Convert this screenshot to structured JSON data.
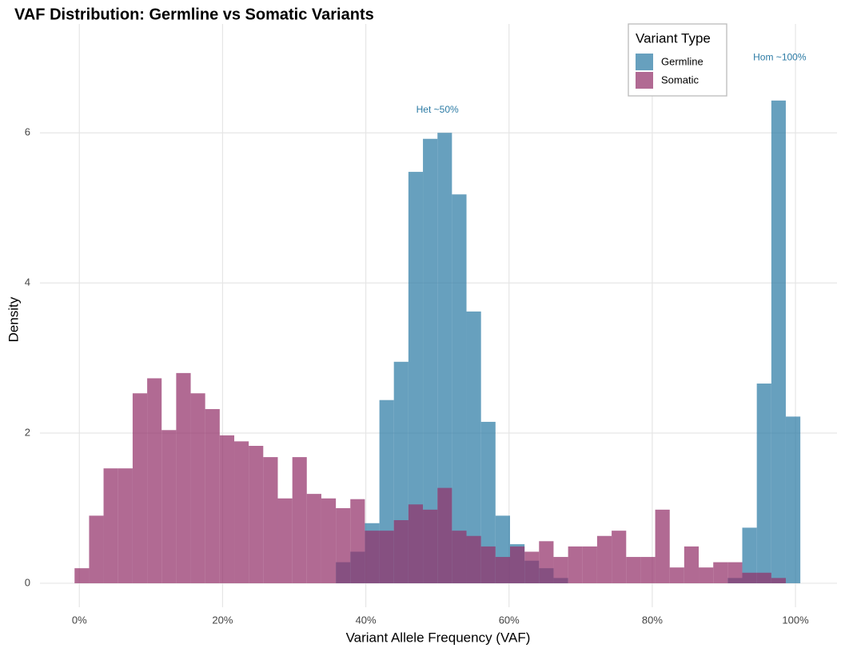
{
  "chart_data": {
    "type": "histogram",
    "title": "VAF Distribution: Germline vs Somatic Variants",
    "x_label": "Variant Allele Frequency (VAF)",
    "y_label": "Density",
    "legend_title": "Variant Type",
    "legend_position": "top-right",
    "grid": true,
    "bins": [
      -0.0067,
      0.0136,
      0.0338,
      0.0541,
      0.0744,
      0.0947,
      0.1149,
      0.1352,
      0.1555,
      0.1757,
      0.196,
      0.2163,
      0.2365,
      0.2568,
      0.2771,
      0.2974,
      0.3176,
      0.3379,
      0.3582,
      0.3784,
      0.3987,
      0.419,
      0.4392,
      0.4595,
      0.4798,
      0.5001,
      0.5203,
      0.5406,
      0.5609,
      0.5811,
      0.6014,
      0.6217,
      0.6419,
      0.6622,
      0.6825,
      0.7028,
      0.723,
      0.7433,
      0.7636,
      0.7838,
      0.8041,
      0.8244,
      0.8446,
      0.8649,
      0.8852,
      0.9054,
      0.9257,
      0.946,
      0.9663,
      0.9865,
      1.0068
    ],
    "series": [
      {
        "name": "Germline",
        "color": "#2c7ba5",
        "values": [
          0,
          0,
          0,
          0,
          0,
          0,
          0,
          0,
          0,
          0,
          0,
          0,
          0,
          0,
          0,
          0,
          0,
          0,
          0.28,
          0.42,
          0.8,
          2.44,
          2.95,
          5.48,
          5.92,
          6.0,
          5.18,
          3.62,
          2.15,
          0.9,
          0.52,
          0.3,
          0.2,
          0.07,
          0,
          0,
          0,
          0,
          0,
          0,
          0,
          0,
          0,
          0,
          0,
          0.07,
          0.74,
          2.66,
          6.43,
          2.22
        ]
      },
      {
        "name": "Somatic",
        "color": "#93316a",
        "values": [
          0.2,
          0.9,
          1.53,
          1.53,
          2.53,
          2.73,
          2.04,
          2.8,
          2.53,
          2.32,
          1.97,
          1.89,
          1.83,
          1.68,
          1.13,
          1.68,
          1.19,
          1.13,
          1.0,
          1.12,
          0.7,
          0.7,
          0.84,
          1.05,
          0.98,
          1.27,
          0.7,
          0.63,
          0.49,
          0.35,
          0.49,
          0.42,
          0.56,
          0.35,
          0.49,
          0.49,
          0.63,
          0.7,
          0.35,
          0.35,
          0.98,
          0.21,
          0.49,
          0.21,
          0.28,
          0.28,
          0.14,
          0.14,
          0.07,
          0
        ]
      }
    ],
    "xlim": [
      -0.055,
      1.058
    ],
    "ylim": [
      -0.32,
      7.45
    ],
    "xticks": [
      {
        "value": 0,
        "label": "0%"
      },
      {
        "value": 0.2,
        "label": "20%"
      },
      {
        "value": 0.4,
        "label": "40%"
      },
      {
        "value": 0.6,
        "label": "60%"
      },
      {
        "value": 0.8,
        "label": "80%"
      },
      {
        "value": 1,
        "label": "100%"
      }
    ],
    "yticks": [
      0,
      2,
      4,
      6
    ],
    "annotations": [
      {
        "text": "Het ~50%",
        "x": 0.5,
        "y": 6.3,
        "color": "#2c7ba5"
      },
      {
        "text": "Hom ~100%",
        "x": 0.978,
        "y": 7.0,
        "color": "#2c7ba5"
      }
    ]
  }
}
